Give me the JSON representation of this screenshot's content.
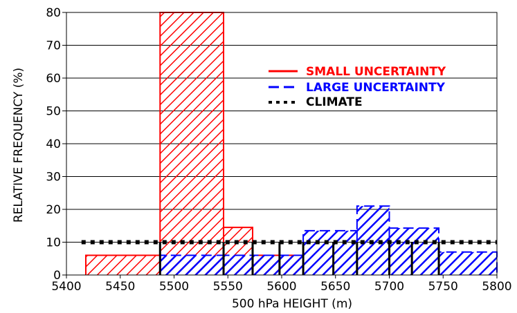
{
  "chart_data": {
    "type": "bar",
    "xlabel": "500 hPa HEIGHT (m)",
    "ylabel": "RELATIVE FREQUENCY (%)",
    "xlim": [
      5400,
      5800
    ],
    "ylim": [
      0,
      80
    ],
    "x_ticks": [
      "5400",
      "5450",
      "5500",
      "5550",
      "5600",
      "5650",
      "5700",
      "5750",
      "5800"
    ],
    "y_ticks": [
      "0",
      "10",
      "20",
      "30",
      "40",
      "50",
      "60",
      "70",
      "80"
    ],
    "grid": true,
    "legend_position": "top-right",
    "series": [
      {
        "name": "SMALL UNCERTAINTY",
        "color": "#ff0000",
        "line_style": "solid",
        "bins": [
          {
            "x0": 5418,
            "x1": 5487,
            "value": 6
          },
          {
            "x0": 5487,
            "x1": 5546,
            "value": 80
          },
          {
            "x0": 5546,
            "x1": 5573,
            "value": 14.5
          },
          {
            "x0": 5573,
            "x1": 5620,
            "value": 6
          }
        ]
      },
      {
        "name": "LARGE UNCERTAINTY",
        "color": "#0000ff",
        "line_style": "dashed",
        "bins": [
          {
            "x0": 5487,
            "x1": 5546,
            "value": 6
          },
          {
            "x0": 5546,
            "x1": 5573,
            "value": 6
          },
          {
            "x0": 5573,
            "x1": 5620,
            "value": 6
          },
          {
            "x0": 5620,
            "x1": 5670,
            "value": 13.5
          },
          {
            "x0": 5670,
            "x1": 5700,
            "value": 21
          },
          {
            "x0": 5700,
            "x1": 5746,
            "value": 14.3
          },
          {
            "x0": 5746,
            "x1": 5800,
            "value": 7
          }
        ]
      },
      {
        "name": "CLIMATE",
        "color": "#000000",
        "line_style": "dotted",
        "value": 10,
        "x_range": [
          5414,
          5800
        ],
        "bin_edges": [
          5487,
          5546,
          5573,
          5598,
          5620,
          5648,
          5670,
          5700,
          5721,
          5746
        ]
      }
    ]
  }
}
